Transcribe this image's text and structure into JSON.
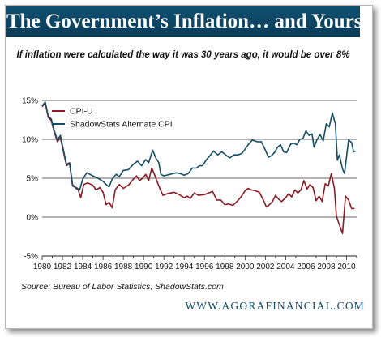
{
  "header": {
    "title": "The Government’s Inflation… and Yours",
    "subtitle": "If inflation were calculated the way it was 30 years ago, it would be over 8%"
  },
  "footer": {
    "source": "Source: Bureau of Labor Statistics, ShadowStats.com",
    "url": "WWW.AGORAFINANCIAL.COM"
  },
  "colors": {
    "title_bg": "#0d4766",
    "cpi_u": "#8b1a24",
    "shadowstats": "#154e66"
  },
  "chart_data": {
    "type": "line",
    "title": "",
    "xlabel": "",
    "ylabel": "",
    "xlim": [
      1980,
      2011
    ],
    "ylim": [
      -5,
      15
    ],
    "x_ticks": [
      "1980",
      "1982",
      "1984",
      "1986",
      "1988",
      "1990",
      "1992",
      "1994",
      "1996",
      "1998",
      "2000",
      "2002",
      "2004",
      "2006",
      "2008",
      "2010"
    ],
    "y_ticks": [
      "15%",
      "10%",
      "5%",
      "0%",
      "-5%"
    ],
    "y_tick_values": [
      15,
      10,
      5,
      0,
      -5
    ],
    "grid": true,
    "legend_position": "top-left",
    "series": [
      {
        "name": "CPI-U",
        "color": "#8b1a24",
        "points": [
          [
            1980.0,
            14.2
          ],
          [
            1980.3,
            14.7
          ],
          [
            1980.6,
            12.8
          ],
          [
            1980.9,
            12.4
          ],
          [
            1981.2,
            10.9
          ],
          [
            1981.5,
            9.7
          ],
          [
            1981.8,
            10.2
          ],
          [
            1982.1,
            8.4
          ],
          [
            1982.4,
            6.6
          ],
          [
            1982.7,
            6.9
          ],
          [
            1983.0,
            4.0
          ],
          [
            1983.5,
            3.7
          ],
          [
            1983.8,
            2.5
          ],
          [
            1984.1,
            4.2
          ],
          [
            1984.5,
            4.4
          ],
          [
            1985.0,
            4.1
          ],
          [
            1985.3,
            3.5
          ],
          [
            1985.7,
            3.8
          ],
          [
            1986.0,
            3.2
          ],
          [
            1986.3,
            1.6
          ],
          [
            1986.6,
            1.9
          ],
          [
            1986.9,
            1.2
          ],
          [
            1987.2,
            3.5
          ],
          [
            1987.6,
            4.2
          ],
          [
            1988.0,
            3.7
          ],
          [
            1988.5,
            4.1
          ],
          [
            1989.0,
            4.9
          ],
          [
            1989.3,
            5.3
          ],
          [
            1989.6,
            4.7
          ],
          [
            1989.9,
            5.0
          ],
          [
            1990.2,
            5.5
          ],
          [
            1990.5,
            4.7
          ],
          [
            1990.8,
            6.3
          ],
          [
            1991.1,
            5.4
          ],
          [
            1991.5,
            4.0
          ],
          [
            1991.9,
            2.8
          ],
          [
            1992.3,
            3.0
          ],
          [
            1993.0,
            3.2
          ],
          [
            1993.5,
            2.9
          ],
          [
            1994.0,
            2.5
          ],
          [
            1994.3,
            2.7
          ],
          [
            1994.6,
            2.4
          ],
          [
            1995.0,
            3.1
          ],
          [
            1995.4,
            2.8
          ],
          [
            1996.0,
            2.9
          ],
          [
            1996.8,
            3.3
          ],
          [
            1997.2,
            2.2
          ],
          [
            1997.6,
            2.2
          ],
          [
            1998.0,
            1.6
          ],
          [
            1998.4,
            1.7
          ],
          [
            1998.8,
            1.5
          ],
          [
            1999.2,
            2.0
          ],
          [
            1999.6,
            2.6
          ],
          [
            2000.0,
            3.4
          ],
          [
            2000.3,
            3.7
          ],
          [
            2000.6,
            3.5
          ],
          [
            2001.0,
            3.4
          ],
          [
            2001.4,
            3.2
          ],
          [
            2001.8,
            2.2
          ],
          [
            2002.1,
            1.3
          ],
          [
            2002.4,
            1.6
          ],
          [
            2002.7,
            2.0
          ],
          [
            2003.0,
            2.8
          ],
          [
            2003.3,
            2.3
          ],
          [
            2003.6,
            2.0
          ],
          [
            2004.0,
            2.5
          ],
          [
            2004.3,
            3.0
          ],
          [
            2004.6,
            2.6
          ],
          [
            2004.9,
            3.5
          ],
          [
            2005.2,
            3.1
          ],
          [
            2005.5,
            3.5
          ],
          [
            2005.8,
            4.7
          ],
          [
            2006.1,
            3.6
          ],
          [
            2006.4,
            4.2
          ],
          [
            2006.7,
            3.8
          ],
          [
            2007.0,
            2.1
          ],
          [
            2007.3,
            2.7
          ],
          [
            2007.6,
            2.0
          ],
          [
            2007.9,
            4.3
          ],
          [
            2008.2,
            4.0
          ],
          [
            2008.5,
            5.6
          ],
          [
            2008.8,
            3.7
          ],
          [
            2009.0,
            0.1
          ],
          [
            2009.3,
            -1.0
          ],
          [
            2009.6,
            -2.1
          ],
          [
            2009.9,
            2.7
          ],
          [
            2010.2,
            2.2
          ],
          [
            2010.5,
            1.1
          ],
          [
            2010.8,
            1.1
          ]
        ]
      },
      {
        "name": "ShadowStats Alternate CPI",
        "color": "#154e66",
        "points": [
          [
            1980.0,
            14.3
          ],
          [
            1980.3,
            14.8
          ],
          [
            1980.6,
            13.0
          ],
          [
            1980.9,
            12.6
          ],
          [
            1981.2,
            11.1
          ],
          [
            1981.5,
            9.9
          ],
          [
            1981.8,
            10.5
          ],
          [
            1982.1,
            8.6
          ],
          [
            1982.4,
            6.8
          ],
          [
            1982.7,
            7.0
          ],
          [
            1983.0,
            4.2
          ],
          [
            1983.4,
            3.6
          ],
          [
            1983.7,
            3.5
          ],
          [
            1984.0,
            4.9
          ],
          [
            1984.4,
            5.7
          ],
          [
            1985.0,
            5.3
          ],
          [
            1985.5,
            5.0
          ],
          [
            1986.0,
            4.6
          ],
          [
            1986.3,
            4.2
          ],
          [
            1986.6,
            3.9
          ],
          [
            1986.9,
            4.9
          ],
          [
            1987.3,
            5.5
          ],
          [
            1987.6,
            5.2
          ],
          [
            1988.0,
            6.0
          ],
          [
            1988.5,
            6.1
          ],
          [
            1989.0,
            6.8
          ],
          [
            1989.4,
            7.2
          ],
          [
            1989.8,
            6.6
          ],
          [
            1990.2,
            7.4
          ],
          [
            1990.5,
            7.0
          ],
          [
            1990.9,
            8.6
          ],
          [
            1991.2,
            7.6
          ],
          [
            1991.5,
            7.0
          ],
          [
            1991.7,
            5.5
          ],
          [
            1992.0,
            5.3
          ],
          [
            1992.6,
            5.5
          ],
          [
            1993.2,
            5.7
          ],
          [
            1993.6,
            5.6
          ],
          [
            1994.0,
            5.4
          ],
          [
            1994.4,
            5.6
          ],
          [
            1994.8,
            6.3
          ],
          [
            1995.2,
            6.3
          ],
          [
            1995.5,
            6.6
          ],
          [
            1995.8,
            6.6
          ],
          [
            1996.2,
            7.4
          ],
          [
            1996.6,
            8.0
          ],
          [
            1996.9,
            8.5
          ],
          [
            1997.3,
            8.0
          ],
          [
            1997.7,
            8.4
          ],
          [
            1998.1,
            8.0
          ],
          [
            1998.5,
            7.6
          ],
          [
            1998.9,
            8.0
          ],
          [
            1999.3,
            8.0
          ],
          [
            1999.7,
            8.2
          ],
          [
            2000.3,
            9.3
          ],
          [
            2000.7,
            9.9
          ],
          [
            2001.2,
            9.7
          ],
          [
            2001.6,
            9.7
          ],
          [
            2002.0,
            8.6
          ],
          [
            2002.3,
            7.7
          ],
          [
            2002.6,
            7.9
          ],
          [
            2002.9,
            8.3
          ],
          [
            2003.2,
            9.0
          ],
          [
            2003.5,
            9.3
          ],
          [
            2003.8,
            8.4
          ],
          [
            2004.1,
            8.3
          ],
          [
            2004.5,
            9.4
          ],
          [
            2004.8,
            9.5
          ],
          [
            2005.1,
            9.3
          ],
          [
            2005.4,
            10.0
          ],
          [
            2005.7,
            10.1
          ],
          [
            2006.0,
            11.1
          ],
          [
            2006.3,
            10.5
          ],
          [
            2006.6,
            10.7
          ],
          [
            2006.8,
            9.0
          ],
          [
            2007.1,
            10.0
          ],
          [
            2007.4,
            10.6
          ],
          [
            2007.7,
            9.8
          ],
          [
            2008.0,
            12.0
          ],
          [
            2008.3,
            11.6
          ],
          [
            2008.6,
            13.4
          ],
          [
            2008.9,
            12.0
          ],
          [
            2009.1,
            7.3
          ],
          [
            2009.3,
            8.0
          ],
          [
            2009.6,
            6.2
          ],
          [
            2009.8,
            5.6
          ],
          [
            2010.0,
            7.8
          ],
          [
            2010.2,
            9.9
          ],
          [
            2010.5,
            9.6
          ],
          [
            2010.7,
            8.4
          ],
          [
            2010.9,
            8.5
          ]
        ]
      }
    ]
  }
}
